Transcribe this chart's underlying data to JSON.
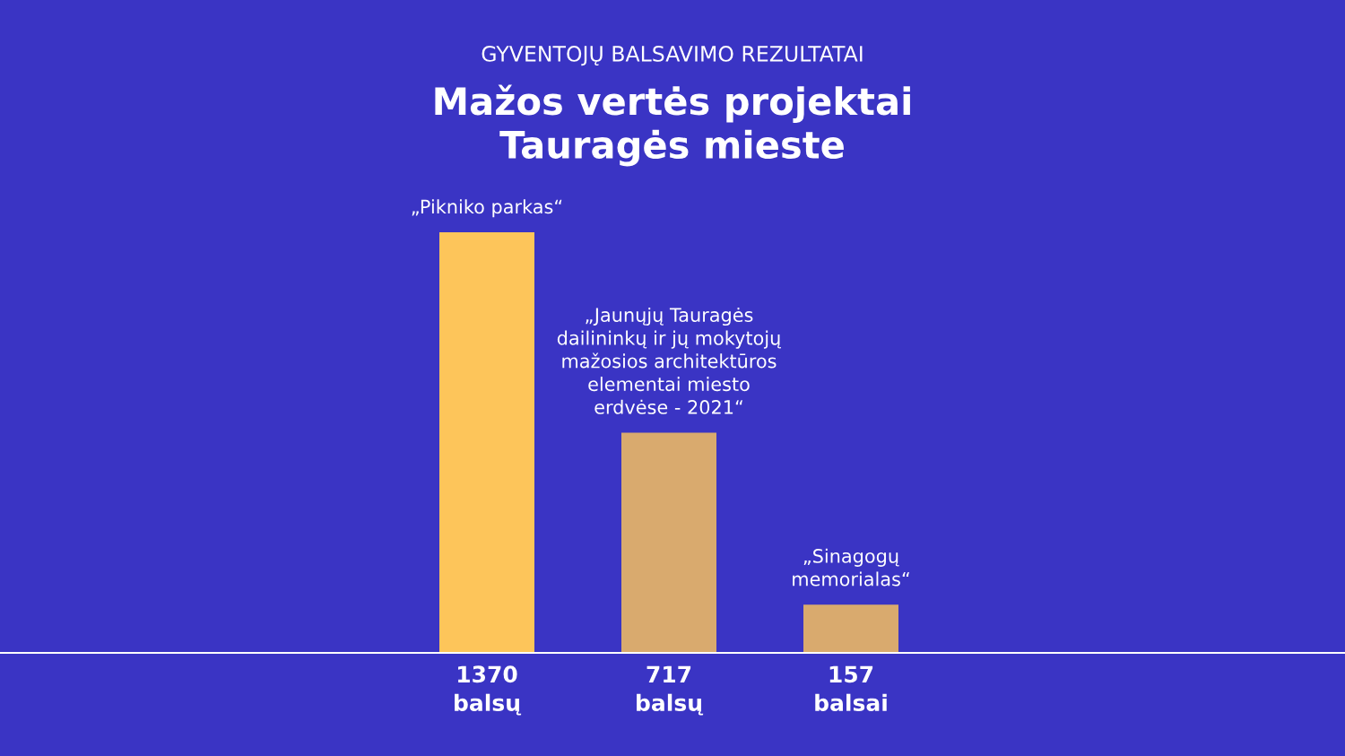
{
  "chart_data": {
    "type": "bar",
    "subtitle": "GYVENTOJŲ BALSAVIMO REZULTATAI",
    "title": "Mažos vertės projektai\nTauragės mieste",
    "categories": [
      "„Pikniko parkas“",
      "„Jaunųjų Tauragės\ndailininkų ir jų mokytojų\nmažosios architektūros\nelementai miesto\nerdvėse - 2021“",
      "„Sinagogų\nmemorialas“"
    ],
    "values": [
      1370,
      717,
      157
    ],
    "colors": [
      "#fdc55a",
      "#d9aa6e",
      "#d9aa6e"
    ],
    "value_labels": [
      "1370\nbalsų",
      "717\nbalsų",
      "157\nbalsai"
    ]
  }
}
